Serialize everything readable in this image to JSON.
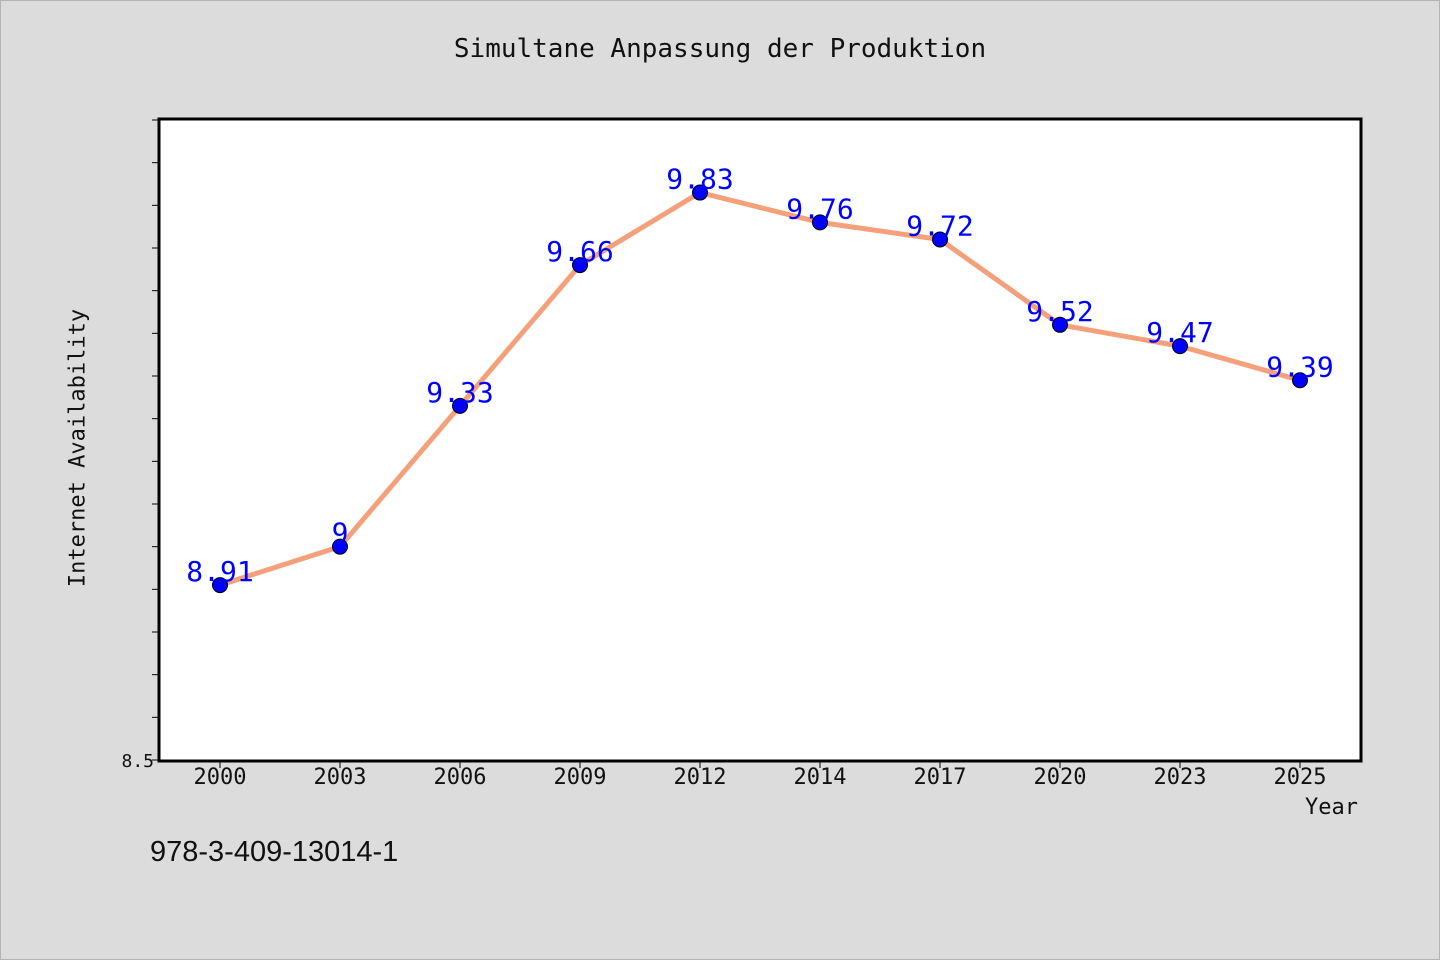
{
  "chart_data": {
    "type": "line",
    "title": "Simultane Anpassung der Produktion",
    "xlabel": "Year",
    "ylabel": "Internet Availability",
    "categories": [
      "2000",
      "2003",
      "2006",
      "2009",
      "2012",
      "2014",
      "2017",
      "2020",
      "2023",
      "2025"
    ],
    "series": [
      {
        "values": [
          8.91,
          9,
          9.33,
          9.66,
          9.83,
          9.76,
          9.72,
          9.52,
          9.47,
          9.39
        ],
        "labels": [
          "8.91",
          "9",
          "9.33",
          "9.66",
          "9.83",
          "9.76",
          "9.72",
          "9.52",
          "9.47",
          "9.39"
        ],
        "line_color": "#f4a07a",
        "marker_color": "#0000ff"
      }
    ],
    "ylim": [
      8.5,
      10
    ],
    "y_tick_labels": [
      "8.5"
    ],
    "grid": false,
    "legend": "none",
    "data_label_color": "#0000ff"
  },
  "footnote": "978-3-409-13014-1"
}
